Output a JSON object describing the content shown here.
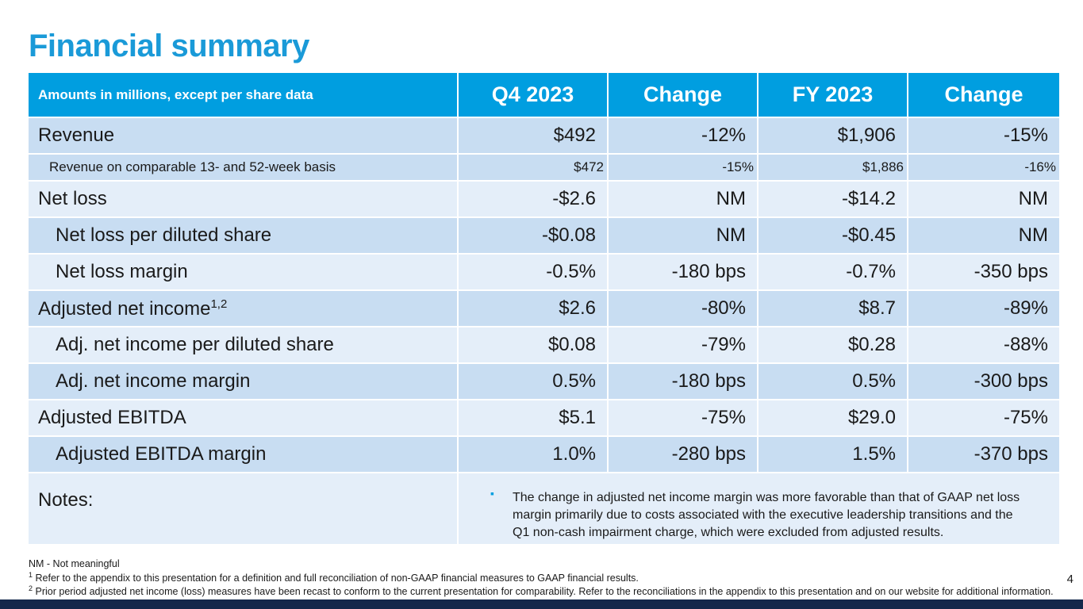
{
  "title": "Financial summary",
  "table": {
    "headers": [
      "Amounts in millions, except per share data",
      "Q4 2023",
      "Change",
      "FY 2023",
      "Change"
    ],
    "rows": [
      {
        "label": "Revenue",
        "values": [
          "$492",
          "-12%",
          "$1,906",
          "-15%"
        ]
      },
      {
        "label": "Revenue on comparable 13- and 52-week basis",
        "values": [
          "$472",
          "-15%",
          "$1,886",
          "-16%"
        ]
      },
      {
        "label": "Net loss",
        "values": [
          "-$2.6",
          "NM",
          "-$14.2",
          "NM"
        ]
      },
      {
        "label": "Net loss per diluted share",
        "values": [
          "-$0.08",
          "NM",
          "-$0.45",
          "NM"
        ]
      },
      {
        "label": "Net loss margin",
        "values": [
          "-0.5%",
          "-180 bps",
          "-0.7%",
          "-350 bps"
        ]
      },
      {
        "label": "Adjusted net income",
        "sup": "1,2",
        "values": [
          "$2.6",
          "-80%",
          "$8.7",
          "-89%"
        ]
      },
      {
        "label": "Adj. net income per diluted share",
        "values": [
          "$0.08",
          "-79%",
          "$0.28",
          "-88%"
        ]
      },
      {
        "label": "Adj. net income margin",
        "values": [
          "0.5%",
          "-180 bps",
          "0.5%",
          "-300 bps"
        ]
      },
      {
        "label": "Adjusted EBITDA",
        "values": [
          "$5.1",
          "-75%",
          "$29.0",
          "-75%"
        ]
      },
      {
        "label": "Adjusted EBITDA margin",
        "values": [
          "1.0%",
          "-280 bps",
          "1.5%",
          "-370 bps"
        ]
      }
    ],
    "notes_label": "Notes:",
    "notes_text": "The change in adjusted net income margin was more favorable than that of GAAP net loss margin primarily due to costs associated with the executive leadership transitions and the Q1 non-cash impairment charge, which were excluded from adjusted results."
  },
  "footnotes": {
    "nm": "NM - Not meaningful",
    "f1_mark": "1",
    "f1": "Refer to the appendix to this presentation for a definition and full reconciliation of non-GAAP financial measures to GAAP financial results.",
    "f2_mark": "2",
    "f2": "Prior period adjusted net income (loss) measures have been recast to conform to the current presentation for comparability. Refer to the reconciliations in the appendix to this presentation and on our website for additional information."
  },
  "page_number": "4",
  "colors": {
    "accent": "#009ee0",
    "title": "#1a9ad8",
    "footer_bar": "#14284b"
  }
}
